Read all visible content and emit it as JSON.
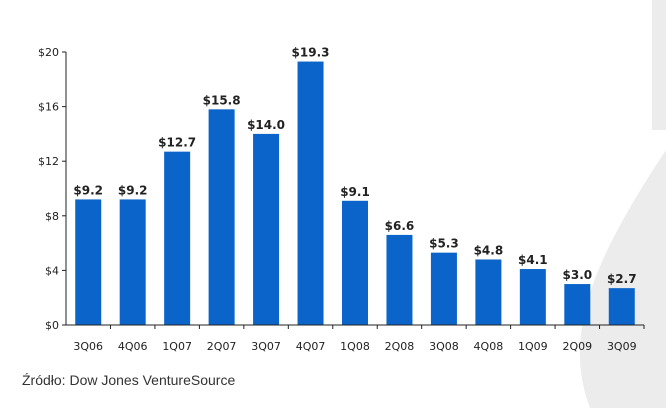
{
  "colors": {
    "bar": "#0a64c9",
    "axis": "#222222",
    "background_decoration": "#ececec"
  },
  "source_note": "Źródło: Dow Jones VentureSource",
  "chart_data": {
    "type": "bar",
    "title": "",
    "xlabel": "",
    "ylabel": "",
    "categories": [
      "3Q06",
      "4Q06",
      "1Q07",
      "2Q07",
      "3Q07",
      "4Q07",
      "1Q08",
      "2Q08",
      "3Q08",
      "4Q08",
      "1Q09",
      "2Q09",
      "3Q09"
    ],
    "values": [
      9.2,
      9.2,
      12.7,
      15.8,
      14.0,
      19.3,
      9.1,
      6.6,
      5.3,
      4.8,
      4.1,
      3.0,
      2.7
    ],
    "value_labels": [
      "$9.2",
      "$9.2",
      "$12.7",
      "$15.8",
      "$14.0",
      "$19.3",
      "$9.1",
      "$6.6",
      "$5.3",
      "$4.8",
      "$4.1",
      "$3.0",
      "$2.7"
    ],
    "ylim": [
      0,
      20
    ],
    "yticks": [
      0,
      4,
      8,
      12,
      16,
      20
    ],
    "ytick_labels": [
      "$0",
      "$4",
      "$8",
      "$12",
      "$16",
      "$20"
    ],
    "grid": false,
    "legend": "none"
  }
}
